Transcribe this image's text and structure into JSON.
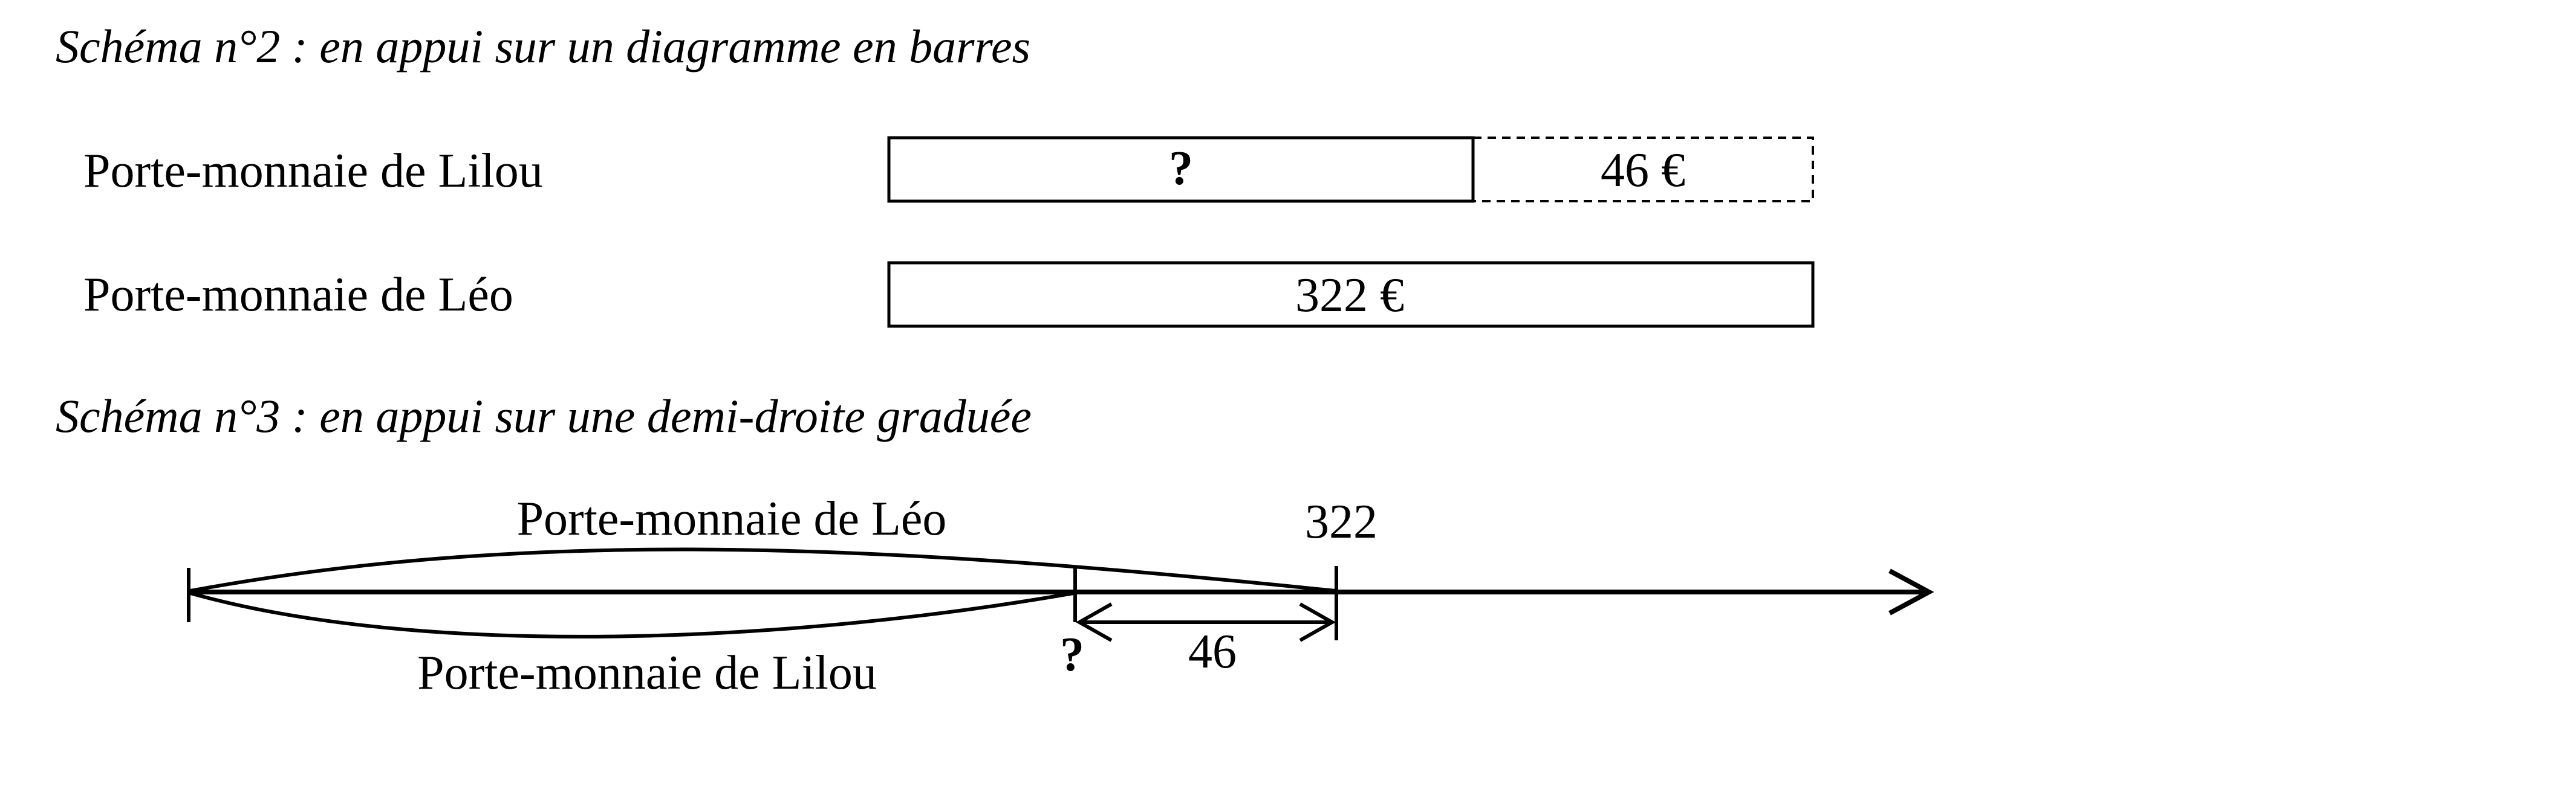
{
  "schema2": {
    "title": "Schéma n°2 : en appui sur un diagramme en barres",
    "rows": [
      {
        "label": "Porte-monnaie de Lilou",
        "unknown": "?",
        "difference": "46 €"
      },
      {
        "label": "Porte-monnaie de Léo",
        "value": "322 €"
      }
    ]
  },
  "schema3": {
    "title": "Schéma n°3 : en appui sur une demi-droite graduée",
    "upper_brace_label": "Porte-monnaie de Léo",
    "lower_brace_label": "Porte-monnaie de Lilou",
    "tick_value": "322",
    "unknown_mark": "?",
    "difference_label": "46"
  },
  "quantities": {
    "leo_amount": 322,
    "difference": 46,
    "currency": "€"
  }
}
